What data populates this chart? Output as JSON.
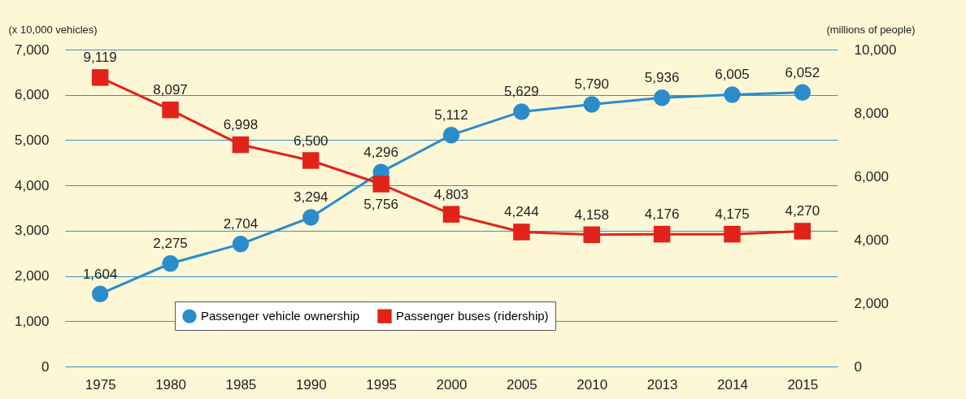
{
  "chart_data": {
    "type": "line",
    "ylabel": "(x 10,000 vehicles)",
    "y2label": "(millions of people)",
    "categories": [
      "1975",
      "1980",
      "1985",
      "1990",
      "1995",
      "2000",
      "2005",
      "2010",
      "2013",
      "2014",
      "2015"
    ],
    "series": [
      {
        "name": "Passenger vehicle ownership",
        "color": "#2b8ccb",
        "marker": "circle",
        "values": [
          1604,
          2275,
          2704,
          3294,
          4296,
          5112,
          5629,
          5790,
          5936,
          6005,
          6052
        ],
        "value_labels": [
          "1,604",
          "2,275",
          "2,704",
          "3,294",
          "4,296",
          "5,112",
          "5,629",
          "5,790",
          "5,936",
          "6,005",
          "6,052"
        ]
      },
      {
        "name": "Passenger buses (ridership)",
        "color": "#e2231a",
        "marker": "square",
        "axis": "y2",
        "values": [
          9119,
          8097,
          6998,
          6500,
          5756,
          4803,
          4244,
          4158,
          4176,
          4175,
          4270
        ],
        "value_labels": [
          "9,119",
          "8,097",
          "6,998",
          "6,500",
          "5,756",
          "4,803",
          "4,244",
          "4,158",
          "4,176",
          "4,175",
          "4,270"
        ]
      }
    ],
    "ylim": [
      0,
      7000
    ],
    "yticks": [
      0,
      {
        "value": 1000,
        "label": "1,000"
      },
      {
        "value": 2000,
        "label": "2,000"
      },
      {
        "value": 3000,
        "label": "3,000"
      },
      {
        "value": 4000,
        "label": "4,000"
      },
      {
        "value": 5000,
        "label": "5,000"
      },
      {
        "value": 6000,
        "label": "6,000"
      },
      {
        "value": 7000,
        "label": "7,000"
      }
    ],
    "y2lim": [
      0,
      10000
    ],
    "y2ticks": [
      0,
      {
        "value": 2000,
        "label": "2,000"
      },
      {
        "value": 4000,
        "label": "4,000"
      },
      {
        "value": 6000,
        "label": "6,000"
      },
      {
        "value": 8000,
        "label": "8,000"
      },
      {
        "value": 10000,
        "label": "10,000"
      }
    ],
    "grid": "y",
    "legend": "bottom",
    "line_style": "solid"
  }
}
